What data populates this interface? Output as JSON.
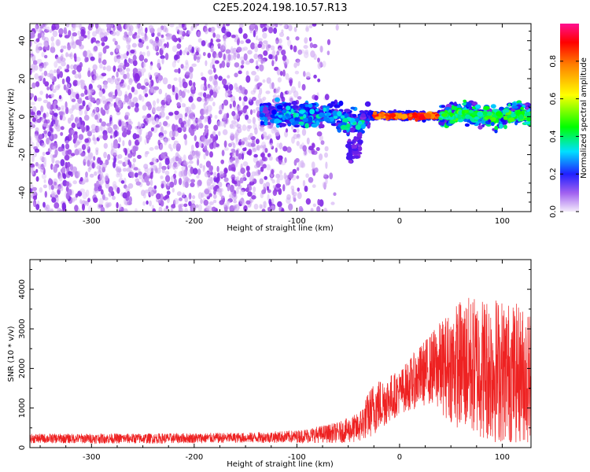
{
  "title": "C2E5.2024.198.10.57.R13",
  "chart_data": [
    {
      "type": "heatmap",
      "xlabel": "Height of straight line (km)",
      "ylabel": "Frequency (Hz)",
      "xlim": [
        -360,
        128
      ],
      "ylim": [
        -50,
        49
      ],
      "x_ticks": [
        -300,
        -200,
        -100,
        0,
        100
      ],
      "y_ticks": [
        -40,
        -20,
        0,
        20,
        40
      ],
      "colorbar": {
        "label": "Normalized spectral amplitude",
        "range": [
          0.0,
          1.0
        ],
        "ticks": [
          0.0,
          0.2,
          0.4,
          0.6,
          0.8
        ],
        "colors": [
          "#f4ecfb",
          "#8a2be2",
          "#0000ff",
          "#00e0ff",
          "#00ff00",
          "#ffff00",
          "#ff8000",
          "#ff0000",
          "#ff1090"
        ]
      },
      "description_regions": [
        {
          "x_range": [
            -360,
            -65
          ],
          "freq_range": [
            -50,
            49
          ],
          "level": "noise 0.0-0.15"
        },
        {
          "x_range": [
            -135,
            -30
          ],
          "freq_range": [
            -10,
            8
          ],
          "level": "0.15-0.45"
        },
        {
          "x_range": [
            -30,
            40
          ],
          "freq_center": 0,
          "level": "0.7-1.0"
        },
        {
          "x_range": [
            40,
            128
          ],
          "freq_range": [
            -5,
            8
          ],
          "level": "0.3-0.55"
        }
      ]
    },
    {
      "type": "line",
      "xlabel": "Height of straight line (km)",
      "ylabel": "SNR (10 * v/v)",
      "xlim": [
        -360,
        128
      ],
      "ylim": [
        0,
        4750
      ],
      "x_ticks": [
        -300,
        -200,
        -100,
        0,
        100
      ],
      "y_ticks": [
        0,
        1000,
        2000,
        3000,
        4000
      ],
      "color": "#ee2222",
      "envelope": [
        {
          "x": -360,
          "mean": 230,
          "spread": 120
        },
        {
          "x": -250,
          "mean": 230,
          "spread": 130
        },
        {
          "x": -150,
          "mean": 250,
          "spread": 130
        },
        {
          "x": -100,
          "mean": 280,
          "spread": 160
        },
        {
          "x": -60,
          "mean": 380,
          "spread": 260
        },
        {
          "x": -40,
          "mean": 500,
          "spread": 380
        },
        {
          "x": -25,
          "mean": 1000,
          "spread": 700
        },
        {
          "x": 0,
          "mean": 1400,
          "spread": 550
        },
        {
          "x": 30,
          "mean": 2000,
          "spread": 900
        },
        {
          "x": 60,
          "mean": 2100,
          "spread": 1700
        },
        {
          "x": 90,
          "mean": 2000,
          "spread": 1900
        },
        {
          "x": 128,
          "mean": 1800,
          "spread": 1700
        }
      ]
    }
  ]
}
